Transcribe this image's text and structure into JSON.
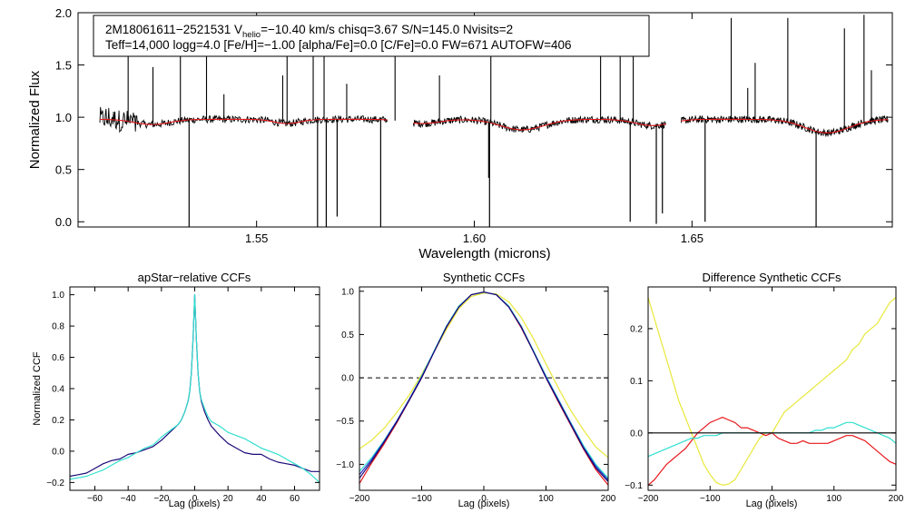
{
  "info_box": {
    "line1_part1": "2M18061611−2521531  V",
    "line1_sub": "helio",
    "line1_part2": "=−10.40 km/s  chisq=3.67  S/N=145.0  Nvisits=2",
    "line2": "Teff=14,000 logg=4.0 [Fe/H]=−1.00 [alpha/Fe]=0.0 [C/Fe]=0.0 FW=671 AUTOFW=406"
  },
  "colors": {
    "observed": "#000000",
    "model": "#e8181c",
    "navy": "#1a0a78",
    "cyan": "#30e0d0",
    "yellow": "#e8e83a",
    "red": "#e8181c",
    "blue": "#2030c8",
    "axis": "#000000"
  },
  "chart_data": [
    {
      "type": "line",
      "name": "spectrum",
      "title": "",
      "xlabel": "Wavelength (microns)",
      "ylabel": "Normalized Flux",
      "xlim": [
        1.509,
        1.696
      ],
      "ylim": [
        -0.05,
        2.0
      ],
      "xticks": [
        1.55,
        1.6,
        1.65
      ],
      "xtick_labels": [
        "1.55",
        "1.60",
        "1.65"
      ],
      "yticks": [
        0.0,
        0.5,
        1.0,
        1.5,
        2.0
      ],
      "ytick_labels": [
        "0.0",
        "0.5",
        "1.0",
        "1.5",
        "2.0"
      ],
      "chips": [
        [
          1.514,
          1.58
        ],
        [
          1.586,
          1.644
        ],
        [
          1.6475,
          1.695
        ]
      ],
      "continuum": 0.98,
      "broad_dips": [
        {
          "center": 1.526,
          "width": 0.004,
          "depth": 0.05
        },
        {
          "center": 1.557,
          "width": 0.003,
          "depth": 0.04
        },
        {
          "center": 1.588,
          "width": 0.004,
          "depth": 0.04
        },
        {
          "center": 1.611,
          "width": 0.005,
          "depth": 0.1
        },
        {
          "center": 1.641,
          "width": 0.004,
          "depth": 0.06
        },
        {
          "center": 1.681,
          "width": 0.005,
          "depth": 0.13
        }
      ],
      "emission_spikes": [
        {
          "x": 1.5205,
          "y": 1.6
        },
        {
          "x": 1.5262,
          "y": 1.48
        },
        {
          "x": 1.5325,
          "y": 1.95
        },
        {
          "x": 1.5385,
          "y": 1.82
        },
        {
          "x": 1.5425,
          "y": 1.22
        },
        {
          "x": 1.556,
          "y": 1.4
        },
        {
          "x": 1.557,
          "y": 1.9
        },
        {
          "x": 1.563,
          "y": 1.95
        },
        {
          "x": 1.5655,
          "y": 1.6
        },
        {
          "x": 1.5707,
          "y": 1.32
        },
        {
          "x": 1.5818,
          "y": 1.58
        },
        {
          "x": 1.592,
          "y": 1.4
        },
        {
          "x": 1.6038,
          "y": 1.62
        },
        {
          "x": 1.629,
          "y": 1.82
        },
        {
          "x": 1.6335,
          "y": 1.58
        },
        {
          "x": 1.6365,
          "y": 1.9
        },
        {
          "x": 1.659,
          "y": 1.95
        },
        {
          "x": 1.6628,
          "y": 1.28
        },
        {
          "x": 1.6645,
          "y": 1.52
        },
        {
          "x": 1.672,
          "y": 1.95
        },
        {
          "x": 1.685,
          "y": 1.85
        },
        {
          "x": 1.6895,
          "y": 1.98
        },
        {
          "x": 1.6912,
          "y": 1.45
        }
      ],
      "absorption_spikes": [
        {
          "x": 1.5345,
          "y": -0.05
        },
        {
          "x": 1.564,
          "y": -0.05
        },
        {
          "x": 1.566,
          "y": -0.05
        },
        {
          "x": 1.5685,
          "y": 0.05
        },
        {
          "x": 1.5785,
          "y": -0.05
        },
        {
          "x": 1.6033,
          "y": 0.42
        },
        {
          "x": 1.6035,
          "y": -0.05
        },
        {
          "x": 1.6358,
          "y": 0.0
        },
        {
          "x": 1.6418,
          "y": -0.02
        },
        {
          "x": 1.6432,
          "y": 0.08
        },
        {
          "x": 1.653,
          "y": 0.0
        },
        {
          "x": 1.6785,
          "y": -0.05
        }
      ]
    },
    {
      "type": "line",
      "name": "apstar_ccf",
      "title": "apStar−relative CCFs",
      "xlabel": "Lag (pixels)",
      "ylabel": "Normalized CCF",
      "xlim": [
        -75,
        75
      ],
      "ylim": [
        -0.25,
        1.05
      ],
      "xticks": [
        -60,
        -40,
        -20,
        0,
        20,
        40,
        60
      ],
      "xtick_labels": [
        "−60",
        "−40",
        "−20",
        "0",
        "20",
        "40",
        "60"
      ],
      "yticks": [
        -0.2,
        0.0,
        0.2,
        0.4,
        0.6,
        0.8,
        1.0
      ],
      "ytick_labels": [
        "−0.2",
        "0.0",
        "0.2",
        "0.4",
        "0.6",
        "0.8",
        "1.0"
      ],
      "series": [
        {
          "name": "navy",
          "color_key": "navy",
          "x": [
            -75,
            -70,
            -65,
            -60,
            -55,
            -50,
            -45,
            -40,
            -35,
            -30,
            -25,
            -20,
            -15,
            -10,
            -8,
            -6,
            -4,
            -3,
            -2,
            -1,
            0,
            1,
            2,
            3,
            4,
            6,
            8,
            10,
            15,
            20,
            25,
            30,
            35,
            40,
            45,
            50,
            55,
            60,
            65,
            70,
            75
          ],
          "y": [
            -0.16,
            -0.15,
            -0.14,
            -0.11,
            -0.08,
            -0.06,
            -0.05,
            -0.02,
            -0.01,
            0.01,
            0.03,
            0.07,
            0.12,
            0.17,
            0.2,
            0.25,
            0.32,
            0.38,
            0.5,
            0.72,
            1.0,
            0.72,
            0.5,
            0.38,
            0.32,
            0.25,
            0.2,
            0.16,
            0.1,
            0.05,
            0.02,
            -0.01,
            -0.02,
            -0.02,
            -0.05,
            -0.07,
            -0.08,
            -0.09,
            -0.11,
            -0.13,
            -0.13
          ]
        },
        {
          "name": "cyan",
          "color_key": "cyan",
          "x": [
            -75,
            -70,
            -65,
            -60,
            -55,
            -50,
            -45,
            -40,
            -35,
            -30,
            -25,
            -20,
            -15,
            -10,
            -8,
            -6,
            -4,
            -3,
            -2,
            -1,
            0,
            1,
            2,
            3,
            4,
            6,
            8,
            10,
            15,
            20,
            25,
            30,
            35,
            40,
            45,
            50,
            55,
            60,
            65,
            70,
            75
          ],
          "y": [
            -0.18,
            -0.17,
            -0.16,
            -0.14,
            -0.12,
            -0.09,
            -0.06,
            -0.04,
            -0.01,
            0.02,
            0.04,
            0.09,
            0.13,
            0.17,
            0.2,
            0.25,
            0.32,
            0.38,
            0.5,
            0.72,
            1.0,
            0.72,
            0.5,
            0.38,
            0.33,
            0.27,
            0.22,
            0.19,
            0.16,
            0.12,
            0.1,
            0.08,
            0.05,
            0.02,
            0.0,
            -0.02,
            -0.05,
            -0.08,
            -0.11,
            -0.15,
            -0.2
          ]
        }
      ]
    },
    {
      "type": "line",
      "name": "synthetic_ccf",
      "title": "Synthetic CCFs",
      "xlabel": "Lag (pixels)",
      "ylabel": "",
      "xlim": [
        -200,
        200
      ],
      "ylim": [
        -1.3,
        1.05
      ],
      "xticks": [
        -200,
        -100,
        0,
        100,
        200
      ],
      "xtick_labels": [
        "−200",
        "−100",
        "0",
        "100",
        "200"
      ],
      "yticks": [
        -1.0,
        -0.5,
        0.0,
        0.5,
        1.0
      ],
      "ytick_labels": [
        "−1.0",
        "−0.5",
        "0.0",
        "0.5",
        "1.0"
      ],
      "zero_line": "dashed",
      "series": [
        {
          "name": "red",
          "color_key": "red",
          "x": [
            -200,
            -180,
            -160,
            -140,
            -120,
            -100,
            -80,
            -60,
            -40,
            -20,
            0,
            20,
            40,
            60,
            80,
            100,
            120,
            140,
            160,
            180,
            200
          ],
          "y": [
            -1.22,
            -0.98,
            -0.76,
            -0.52,
            -0.26,
            0.0,
            0.3,
            0.58,
            0.82,
            0.96,
            0.99,
            0.96,
            0.82,
            0.58,
            0.3,
            0.0,
            -0.28,
            -0.55,
            -0.82,
            -1.06,
            -1.24
          ]
        },
        {
          "name": "yellow",
          "color_key": "yellow",
          "x": [
            -200,
            -180,
            -160,
            -140,
            -120,
            -100,
            -80,
            -60,
            -40,
            -20,
            0,
            20,
            40,
            60,
            80,
            100,
            120,
            140,
            160,
            180,
            200
          ],
          "y": [
            -0.82,
            -0.72,
            -0.58,
            -0.4,
            -0.2,
            0.04,
            0.3,
            0.56,
            0.8,
            0.94,
            0.98,
            0.97,
            0.88,
            0.7,
            0.45,
            0.16,
            -0.12,
            -0.38,
            -0.6,
            -0.8,
            -0.92
          ]
        },
        {
          "name": "cyan",
          "color_key": "cyan",
          "x": [
            -200,
            -180,
            -160,
            -140,
            -120,
            -100,
            -80,
            -60,
            -40,
            -20,
            0,
            20,
            40,
            60,
            80,
            100,
            120,
            140,
            160,
            180,
            200
          ],
          "y": [
            -1.08,
            -0.92,
            -0.72,
            -0.5,
            -0.25,
            0.02,
            0.31,
            0.6,
            0.83,
            0.96,
            0.99,
            0.96,
            0.83,
            0.6,
            0.31,
            0.02,
            -0.25,
            -0.52,
            -0.78,
            -1.0,
            -1.16
          ]
        },
        {
          "name": "blue",
          "color_key": "blue",
          "x": [
            -200,
            -180,
            -160,
            -140,
            -120,
            -100,
            -80,
            -60,
            -40,
            -20,
            0,
            20,
            40,
            60,
            80,
            100,
            120,
            140,
            160,
            180,
            200
          ],
          "y": [
            -1.12,
            -0.94,
            -0.73,
            -0.5,
            -0.25,
            0.01,
            0.3,
            0.59,
            0.82,
            0.96,
            0.99,
            0.96,
            0.82,
            0.59,
            0.3,
            0.01,
            -0.26,
            -0.53,
            -0.8,
            -1.02,
            -1.18
          ]
        },
        {
          "name": "navy",
          "color_key": "navy",
          "x": [
            -200,
            -180,
            -160,
            -140,
            -120,
            -100,
            -80,
            -60,
            -40,
            -20,
            0,
            20,
            40,
            60,
            80,
            100,
            120,
            140,
            160,
            180,
            200
          ],
          "y": [
            -1.16,
            -0.96,
            -0.74,
            -0.51,
            -0.26,
            0.0,
            0.3,
            0.59,
            0.82,
            0.96,
            0.99,
            0.96,
            0.82,
            0.59,
            0.3,
            0.0,
            -0.27,
            -0.54,
            -0.81,
            -1.04,
            -1.2
          ]
        }
      ]
    },
    {
      "type": "line",
      "name": "difference_ccf",
      "title": "Difference Synthetic CCFs",
      "xlabel": "Lag (pixels)",
      "ylabel": "",
      "xlim": [
        -200,
        200
      ],
      "ylim": [
        -0.11,
        0.28
      ],
      "xticks": [
        -200,
        -100,
        0,
        100,
        200
      ],
      "xtick_labels": [
        "−200",
        "−100",
        "0",
        "100",
        "200"
      ],
      "yticks": [
        -0.1,
        0.0,
        0.1,
        0.2
      ],
      "ytick_labels": [
        "−0.1",
        "0.0",
        "0.1",
        "0.2"
      ],
      "zero_line": "solid",
      "series": [
        {
          "name": "yellow",
          "color_key": "yellow",
          "x": [
            -200,
            -190,
            -180,
            -170,
            -160,
            -150,
            -140,
            -130,
            -120,
            -110,
            -100,
            -90,
            -80,
            -70,
            -60,
            -50,
            -40,
            -30,
            -20,
            -10,
            0,
            10,
            20,
            30,
            40,
            50,
            60,
            70,
            80,
            90,
            100,
            110,
            120,
            130,
            140,
            150,
            160,
            170,
            180,
            190,
            200
          ],
          "y": [
            0.26,
            0.22,
            0.18,
            0.14,
            0.1,
            0.06,
            0.03,
            0.0,
            -0.03,
            -0.06,
            -0.08,
            -0.095,
            -0.1,
            -0.098,
            -0.09,
            -0.07,
            -0.05,
            -0.03,
            -0.01,
            0.0,
            0.0,
            0.02,
            0.04,
            0.05,
            0.06,
            0.07,
            0.08,
            0.09,
            0.1,
            0.11,
            0.12,
            0.13,
            0.14,
            0.16,
            0.17,
            0.19,
            0.2,
            0.21,
            0.23,
            0.25,
            0.26
          ]
        },
        {
          "name": "red",
          "color_key": "red",
          "x": [
            -200,
            -190,
            -180,
            -170,
            -160,
            -150,
            -140,
            -130,
            -120,
            -110,
            -100,
            -90,
            -80,
            -70,
            -60,
            -50,
            -40,
            -30,
            -20,
            -10,
            0,
            10,
            20,
            30,
            40,
            50,
            60,
            70,
            80,
            90,
            100,
            110,
            120,
            130,
            140,
            150,
            160,
            170,
            180,
            190,
            200
          ],
          "y": [
            -0.1,
            -0.09,
            -0.075,
            -0.06,
            -0.05,
            -0.04,
            -0.03,
            -0.015,
            0.0,
            0.01,
            0.02,
            0.025,
            0.03,
            0.025,
            0.02,
            0.01,
            0.01,
            0.005,
            0.0,
            -0.005,
            0.0,
            -0.01,
            -0.015,
            -0.02,
            -0.02,
            -0.015,
            -0.02,
            -0.02,
            -0.02,
            -0.02,
            -0.015,
            -0.01,
            -0.005,
            -0.005,
            -0.01,
            -0.015,
            -0.025,
            -0.035,
            -0.045,
            -0.055,
            -0.06
          ]
        },
        {
          "name": "cyan",
          "color_key": "cyan",
          "x": [
            -200,
            -190,
            -180,
            -170,
            -160,
            -150,
            -140,
            -130,
            -120,
            -110,
            -100,
            -90,
            -80,
            -70,
            -60,
            -50,
            -40,
            -30,
            -20,
            -10,
            0,
            10,
            20,
            30,
            40,
            50,
            60,
            70,
            80,
            90,
            100,
            110,
            120,
            130,
            140,
            150,
            160,
            170,
            180,
            190,
            200
          ],
          "y": [
            -0.045,
            -0.04,
            -0.035,
            -0.03,
            -0.025,
            -0.02,
            -0.015,
            -0.01,
            -0.01,
            -0.005,
            -0.005,
            -0.005,
            0.0,
            0.0,
            0.0,
            0.0,
            0.0,
            0.0,
            0.0,
            0.0,
            0.0,
            0.0,
            0.0,
            0.0,
            0.0,
            0.0,
            0.0,
            0.005,
            0.005,
            0.01,
            0.01,
            0.015,
            0.02,
            0.02,
            0.015,
            0.01,
            0.005,
            0.0,
            -0.005,
            -0.01,
            -0.02
          ]
        }
      ]
    }
  ]
}
